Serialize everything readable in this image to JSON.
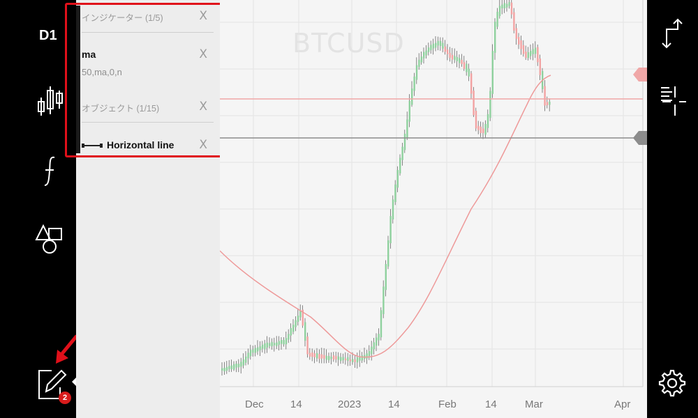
{
  "left_toolbar": {
    "timeframe": "D1",
    "icons": [
      "candlestick-chart-icon",
      "function-icon",
      "shapes-icon",
      "edit-pencil-icon"
    ],
    "edit_badge_count": "2"
  },
  "panel": {
    "indicators_header": "インジケーター (1/5)",
    "indicator": {
      "name": "ma",
      "params": "50,ma,0,n"
    },
    "objects_header": "オブジェクト (1/15)",
    "object": {
      "name": "Horizontal line"
    },
    "remove_label": "X"
  },
  "chart": {
    "symbol_watermark": "BTCUSD",
    "x_ticks": [
      "Dec",
      "14",
      "2023",
      "14",
      "Feb",
      "14",
      "Mar",
      "Apr"
    ],
    "colors": {
      "up": "#8fd19e",
      "down": "#f2a2a2",
      "ma": "#ee9a9a",
      "hline_red": "#f0a7a7",
      "hline_gray": "#8c8c8c"
    }
  },
  "right_toolbar": {
    "icons": [
      "swap-arrows-icon",
      "crosshair-list-icon",
      "settings-gear-icon"
    ]
  },
  "annotations": {
    "highlight": "red-highlight-box",
    "arrow": "red-arrow-icon"
  }
}
